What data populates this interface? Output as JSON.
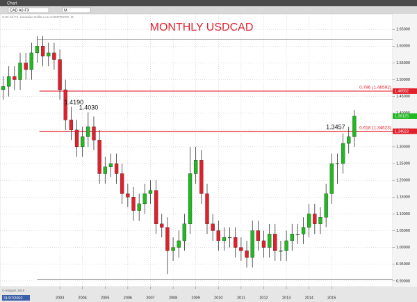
{
  "ui": {
    "window_title": "Chart",
    "symbol": "CAD A0-FX",
    "period": "M",
    "info": "CAD A0-FX, Canadian Dollar LAU COMPOSITE, M",
    "date_box": "31/07/2002",
    "copyright": "© eSignal, 2015"
  },
  "chart_data": {
    "type": "candlestick",
    "title": "MONTHLY USDCAD",
    "x": [
      2000.5,
      2000.75,
      2001,
      2001.25,
      2001.5,
      2001.75,
      2002,
      2002.25,
      2002.5,
      2002.75,
      2003,
      2003.25,
      2003.5,
      2003.75,
      2004,
      2004.25,
      2004.5,
      2004.75,
      2005,
      2005.25,
      2005.5,
      2005.75,
      2006,
      2006.25,
      2006.5,
      2006.75,
      2007,
      2007.25,
      2007.5,
      2007.75,
      2008,
      2008.25,
      2008.5,
      2008.75,
      2009,
      2009.25,
      2009.5,
      2009.75,
      2010,
      2010.25,
      2010.5,
      2010.75,
      2011,
      2011.25,
      2011.5,
      2011.75,
      2012,
      2012.25,
      2012.5,
      2012.75,
      2013,
      2013.25,
      2013.5,
      2013.75,
      2014,
      2014.25,
      2014.5,
      2014.75,
      2015,
      2015.25,
      2015.5,
      2015.75,
      2016
    ],
    "open": [
      1.47,
      1.48,
      1.51,
      1.5,
      1.55,
      1.53,
      1.58,
      1.6,
      1.57,
      1.58,
      1.56,
      1.47,
      1.38,
      1.35,
      1.3,
      1.33,
      1.36,
      1.32,
      1.22,
      1.24,
      1.25,
      1.22,
      1.16,
      1.15,
      1.11,
      1.13,
      1.16,
      1.17,
      1.07,
      1.06,
      0.99,
      1.0,
      1.02,
      1.07,
      1.22,
      1.26,
      1.16,
      1.07,
      1.05,
      1.02,
      1.03,
      1.03,
      1.0,
      0.99,
      0.97,
      1.05,
      1.02,
      1.0,
      1.04,
      0.99,
      0.99,
      1.02,
      1.04,
      1.04,
      1.06,
      1.1,
      1.07,
      1.09,
      1.16,
      1.25,
      1.25,
      1.31,
      1.33
    ],
    "high": [
      1.51,
      1.54,
      1.54,
      1.58,
      1.58,
      1.61,
      1.63,
      1.63,
      1.61,
      1.61,
      1.59,
      1.5,
      1.419,
      1.38,
      1.36,
      1.403,
      1.39,
      1.35,
      1.27,
      1.28,
      1.28,
      1.25,
      1.19,
      1.18,
      1.16,
      1.19,
      1.2,
      1.2,
      1.1,
      1.09,
      1.03,
      1.05,
      1.1,
      1.3,
      1.3,
      1.29,
      1.19,
      1.1,
      1.08,
      1.06,
      1.06,
      1.06,
      1.03,
      1.02,
      1.08,
      1.08,
      1.05,
      1.07,
      1.07,
      1.02,
      1.05,
      1.07,
      1.07,
      1.09,
      1.13,
      1.13,
      1.12,
      1.19,
      1.28,
      1.28,
      1.34,
      1.36,
      1.41
    ],
    "low": [
      1.44,
      1.45,
      1.47,
      1.47,
      1.5,
      1.5,
      1.55,
      1.54,
      1.54,
      1.53,
      1.44,
      1.35,
      1.32,
      1.27,
      1.27,
      1.3,
      1.29,
      1.19,
      1.19,
      1.21,
      1.19,
      1.13,
      1.12,
      1.08,
      1.08,
      1.1,
      1.13,
      1.04,
      1.03,
      0.92,
      0.96,
      0.97,
      0.99,
      1.04,
      1.19,
      1.13,
      1.04,
      1.02,
      0.99,
      0.99,
      1.0,
      0.97,
      0.96,
      0.94,
      0.94,
      0.99,
      0.97,
      0.97,
      0.96,
      0.96,
      0.96,
      0.99,
      1.01,
      1.01,
      1.03,
      1.04,
      1.04,
      1.06,
      1.13,
      1.19,
      1.22,
      1.28,
      1.3
    ],
    "close": [
      1.48,
      1.51,
      1.5,
      1.55,
      1.53,
      1.58,
      1.6,
      1.57,
      1.58,
      1.56,
      1.47,
      1.38,
      1.35,
      1.3,
      1.33,
      1.36,
      1.32,
      1.22,
      1.24,
      1.25,
      1.22,
      1.16,
      1.15,
      1.11,
      1.13,
      1.16,
      1.17,
      1.07,
      1.06,
      0.99,
      1.0,
      1.02,
      1.07,
      1.22,
      1.26,
      1.16,
      1.07,
      1.05,
      1.02,
      1.03,
      1.03,
      1.0,
      0.99,
      0.97,
      1.05,
      1.02,
      1.0,
      1.04,
      0.99,
      0.99,
      1.02,
      1.04,
      1.04,
      1.06,
      1.1,
      1.07,
      1.09,
      1.16,
      1.25,
      1.25,
      1.31,
      1.33,
      1.39125
    ],
    "up_color": "#22b822",
    "down_color": "#e0202c",
    "xlim": [
      2000.36,
      2017.69
    ],
    "xticks": [
      2003,
      2004,
      2005,
      2006,
      2007,
      2008,
      2009,
      2010,
      2011,
      2012,
      2013,
      2014,
      2015
    ],
    "ylim": [
      0.883,
      1.696
    ],
    "yticks": [
      {
        "value": 0.9,
        "label": "0.90000"
      },
      {
        "value": 0.95,
        "label": "0.95000"
      },
      {
        "value": 1.0,
        "label": "1.00000"
      },
      {
        "value": 1.05,
        "label": "1.05000"
      },
      {
        "value": 1.1,
        "label": "1.10000"
      },
      {
        "value": 1.15,
        "label": "1.15000"
      },
      {
        "value": 1.2,
        "label": "1.20000"
      },
      {
        "value": 1.25,
        "label": "1.25000"
      },
      {
        "value": 1.3,
        "label": "1.30000"
      },
      {
        "value": 1.35,
        "label": "1.35000"
      },
      {
        "value": 1.4,
        "label": "1.40000"
      },
      {
        "value": 1.45,
        "label": "1.45000"
      },
      {
        "value": 1.5,
        "label": "1.50000"
      },
      {
        "value": 1.55,
        "label": "1.55000"
      },
      {
        "value": 1.6,
        "label": "1.60000"
      },
      {
        "value": 1.65,
        "label": "1.65000"
      }
    ],
    "grid": true,
    "levels": [
      {
        "label": "0.786 (1.46592)",
        "value": 1.46592,
        "color": "#e0202c"
      },
      {
        "label": "0.618 (1.34623)",
        "value": 1.34623,
        "color": "#e0202c"
      }
    ],
    "range_lines": [
      1.62,
      0.905
    ],
    "annotations": [
      {
        "label": "1.4190",
        "value": 1.419
      },
      {
        "label": "1.4030",
        "value": 1.403
      },
      {
        "label": "1.3457",
        "value": 1.3457
      }
    ]
  }
}
